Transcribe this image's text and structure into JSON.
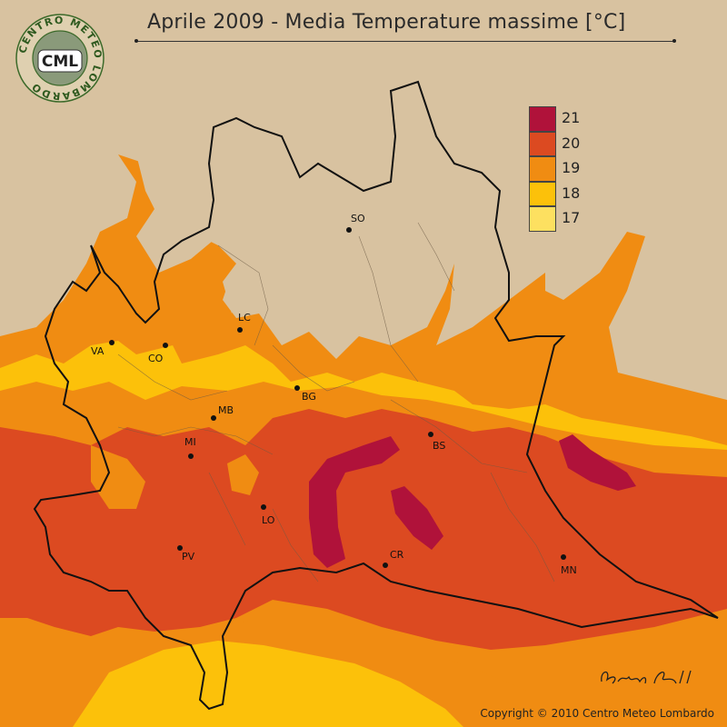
{
  "title": "Aprile 2009 - Media Temperature massime [°C]",
  "logo": {
    "ring_text": "CENTRO METEO LOMBARDO",
    "initials": "CML"
  },
  "legend": {
    "items": [
      {
        "label": "21",
        "color": "#b0123a"
      },
      {
        "label": "20",
        "color": "#dc4a21"
      },
      {
        "label": "19",
        "color": "#f08c12"
      },
      {
        "label": "18",
        "color": "#fcc10a"
      },
      {
        "label": "17",
        "color": "#fde060"
      }
    ]
  },
  "colors": {
    "background": "#d8c2a0",
    "band_21": "#b0123a",
    "band_20": "#dc4a21",
    "band_19": "#f08c12",
    "band_18": "#fcc10a",
    "band_17": "#fde060",
    "border": "#111111"
  },
  "cities": [
    {
      "label": "SO"
    },
    {
      "label": "LC"
    },
    {
      "label": "VA"
    },
    {
      "label": "CO"
    },
    {
      "label": "BG"
    },
    {
      "label": "MB"
    },
    {
      "label": "BS"
    },
    {
      "label": "MI"
    },
    {
      "label": "LO"
    },
    {
      "label": "CR"
    },
    {
      "label": "PV"
    },
    {
      "label": "MN"
    }
  ],
  "signature": "Bruno Pilli",
  "copyright": "Copyright © 2010 Centro Meteo Lombardo"
}
